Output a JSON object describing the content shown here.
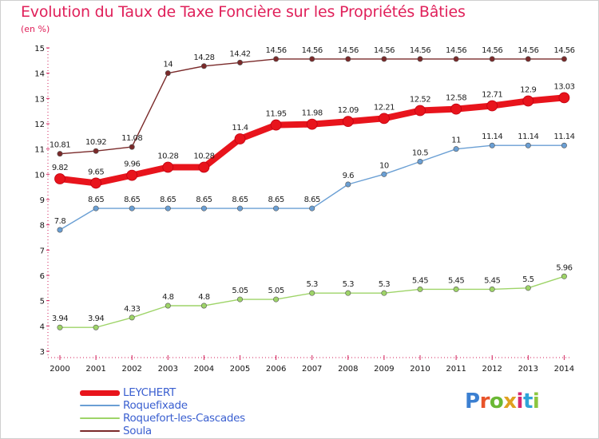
{
  "header": {
    "title": "Evolution du Taux de Taxe Foncière sur les Propriétés Bâties",
    "unit": "(en %)"
  },
  "logo": {
    "text": "Proxiti",
    "letter_colors": [
      "#3b7fd1",
      "#e8542a",
      "#6ab834",
      "#e0a020",
      "#d6286f",
      "#2fa4d8",
      "#8cc63f"
    ]
  },
  "chart_data": {
    "type": "line",
    "x": [
      "2000",
      "2001",
      "2002",
      "2003",
      "2004",
      "2005",
      "2006",
      "2007",
      "2008",
      "2009",
      "2010",
      "2011",
      "2012",
      "2013",
      "2014"
    ],
    "ylim": [
      3,
      15
    ],
    "yticks": [
      "3",
      "4",
      "5",
      "6",
      "7",
      "8",
      "9",
      "10",
      "11",
      "12",
      "13",
      "14",
      "15"
    ],
    "grid": false,
    "legend_position": "bottom-left",
    "series": [
      {
        "name": "LEYCHERT",
        "color": "#e8141c",
        "values": [
          9.82,
          9.65,
          9.96,
          10.28,
          10.28,
          11.4,
          11.95,
          11.98,
          12.09,
          12.21,
          12.52,
          12.58,
          12.71,
          12.9,
          13.03
        ],
        "labels": [
          "9.82",
          "9.65",
          "9.96",
          "10.28",
          "10.28",
          "11.4",
          "11.95",
          "11.98",
          "12.09",
          "12.21",
          "12.52",
          "12.58",
          "12.71",
          "12.9",
          "13.03"
        ]
      },
      {
        "name": "Roquefixade",
        "color": "#6a9fd4",
        "values": [
          7.8,
          8.65,
          8.65,
          8.65,
          8.65,
          8.65,
          8.65,
          8.65,
          9.6,
          10,
          10.5,
          11,
          11.14,
          11.14,
          11.14
        ],
        "labels": [
          "7.8",
          "8.65",
          "8.65",
          "8.65",
          "8.65",
          "8.65",
          "8.65",
          "8.65",
          "9.6",
          "10",
          "10.5",
          "11",
          "11.14",
          "11.14",
          "11.14"
        ]
      },
      {
        "name": "Roquefort-les-Cascades",
        "color": "#9ed468",
        "values": [
          3.94,
          3.94,
          4.33,
          4.8,
          4.8,
          5.05,
          5.05,
          5.3,
          5.3,
          5.3,
          5.45,
          5.45,
          5.45,
          5.5,
          5.96
        ],
        "labels": [
          "3.94",
          "3.94",
          "4.33",
          "4.8",
          "4.8",
          "5.05",
          "5.05",
          "5.3",
          "5.3",
          "5.3",
          "5.45",
          "5.45",
          "5.45",
          "5.5",
          "5.96"
        ]
      },
      {
        "name": "Soula",
        "color": "#7a2a2a",
        "values": [
          10.81,
          10.92,
          11.08,
          14,
          14.28,
          14.42,
          14.56,
          14.56,
          14.56,
          14.56,
          14.56,
          14.56,
          14.56,
          14.56,
          14.56
        ],
        "labels": [
          "10.81",
          "10.92",
          "11.08",
          "14",
          "14.28",
          "14.42",
          "14.56",
          "14.56",
          "14.56",
          "14.56",
          "14.56",
          "14.56",
          "14.56",
          "14.56",
          "14.56"
        ]
      }
    ]
  }
}
